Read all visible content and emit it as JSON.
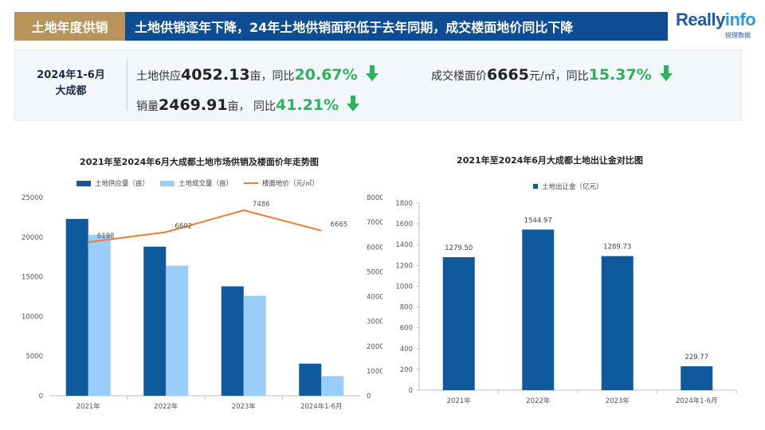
{
  "header": {
    "tag": "土地年度供销",
    "title": "土地供销逐年下降，24年土地供销面积低于去年同期，成交楼面地价同比下降"
  },
  "logo": {
    "text_main": "Really",
    "text_accent": "info",
    "text_sub": "锐理数据"
  },
  "summary": {
    "period_line1": "2024年1-6月",
    "period_line2": "大成都",
    "supply": {
      "label": "土地供应",
      "value": "4052.13",
      "unit": "亩，同比",
      "pct": "20.67%"
    },
    "price": {
      "label": "成交楼面价",
      "value": "6665",
      "unit": "元/㎡，同比",
      "pct": "15.37%"
    },
    "sales": {
      "label": "销量",
      "value": "2469.91",
      "unit": "亩， 同比",
      "pct": "41.21%"
    }
  },
  "colors": {
    "dark_blue": "#0f5a9c",
    "light_blue": "#99cdfa",
    "orange": "#ed7d31",
    "green": "#2bb55a"
  },
  "chart_data": [
    {
      "type": "bar",
      "title": "2021年至2024年6月大成都土地市场供销及楼面价年走势图",
      "categories": [
        "2021年",
        "2022年",
        "2023年",
        "2024年1-6月"
      ],
      "series": [
        {
          "name": "土地供应量（亩）",
          "type": "bar",
          "axis": "left",
          "values": [
            22300,
            18800,
            13800,
            4052
          ]
        },
        {
          "name": "土地成交量（亩）",
          "type": "bar",
          "axis": "left",
          "values": [
            20300,
            16400,
            12600,
            2470
          ]
        },
        {
          "name": "楼面地价（元/㎡）",
          "type": "line",
          "axis": "right",
          "values": [
            6198,
            6602,
            7486,
            6665
          ]
        }
      ],
      "line_labels": [
        "6198",
        "6602",
        "7486",
        "6665"
      ],
      "ylim_left": [
        0,
        25000
      ],
      "yticks_left": [
        "0",
        "5000",
        "10000",
        "15000",
        "20000",
        "25000"
      ],
      "ylim_right": [
        0,
        8000
      ],
      "yticks_right": [
        "0",
        "1000",
        "2000",
        "3000",
        "4000",
        "5000",
        "6000",
        "7000",
        "8000"
      ],
      "grid": false,
      "legend": "top"
    },
    {
      "type": "bar",
      "title": "2021年至2024年6月大成都土地出让金对比图",
      "categories": [
        "2021年",
        "2022年",
        "2023年",
        "2024年1-6月"
      ],
      "series": [
        {
          "name": "土地出让金（亿元）",
          "values": [
            1279.5,
            1544.97,
            1289.73,
            229.77
          ]
        }
      ],
      "data_labels": [
        "1279.50",
        "1544.97",
        "1289.73",
        "229.77"
      ],
      "ylim": [
        0,
        1800
      ],
      "yticks": [
        "0",
        "200",
        "400",
        "600",
        "800",
        "1000",
        "1200",
        "1400",
        "1600",
        "1800"
      ],
      "grid": false,
      "legend": "top"
    }
  ]
}
